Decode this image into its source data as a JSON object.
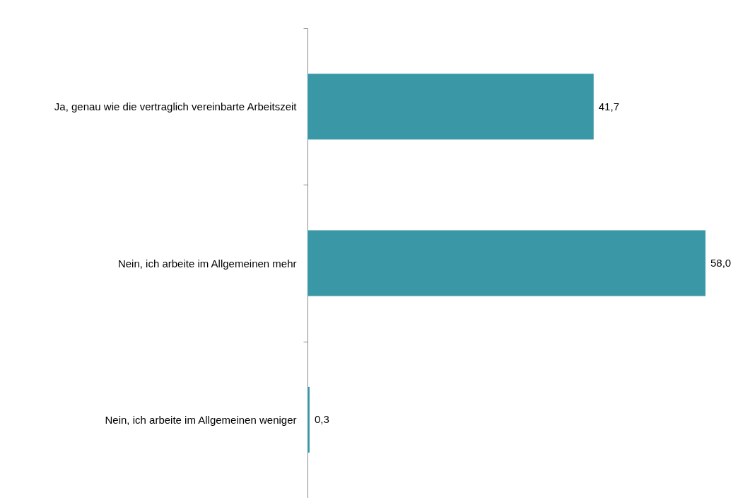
{
  "chart_data": {
    "type": "bar",
    "orientation": "horizontal",
    "categories": [
      "Ja, genau wie die vertraglich vereinbarte Arbeitszeit",
      "Nein, ich arbeite im Allgemeinen mehr",
      "Nein, ich arbeite im Allgemeinen weniger"
    ],
    "values": [
      41.7,
      58.0,
      0.3
    ],
    "value_labels": [
      "41,7",
      "58,0",
      "0,3"
    ],
    "color": "#3a97a5"
  }
}
